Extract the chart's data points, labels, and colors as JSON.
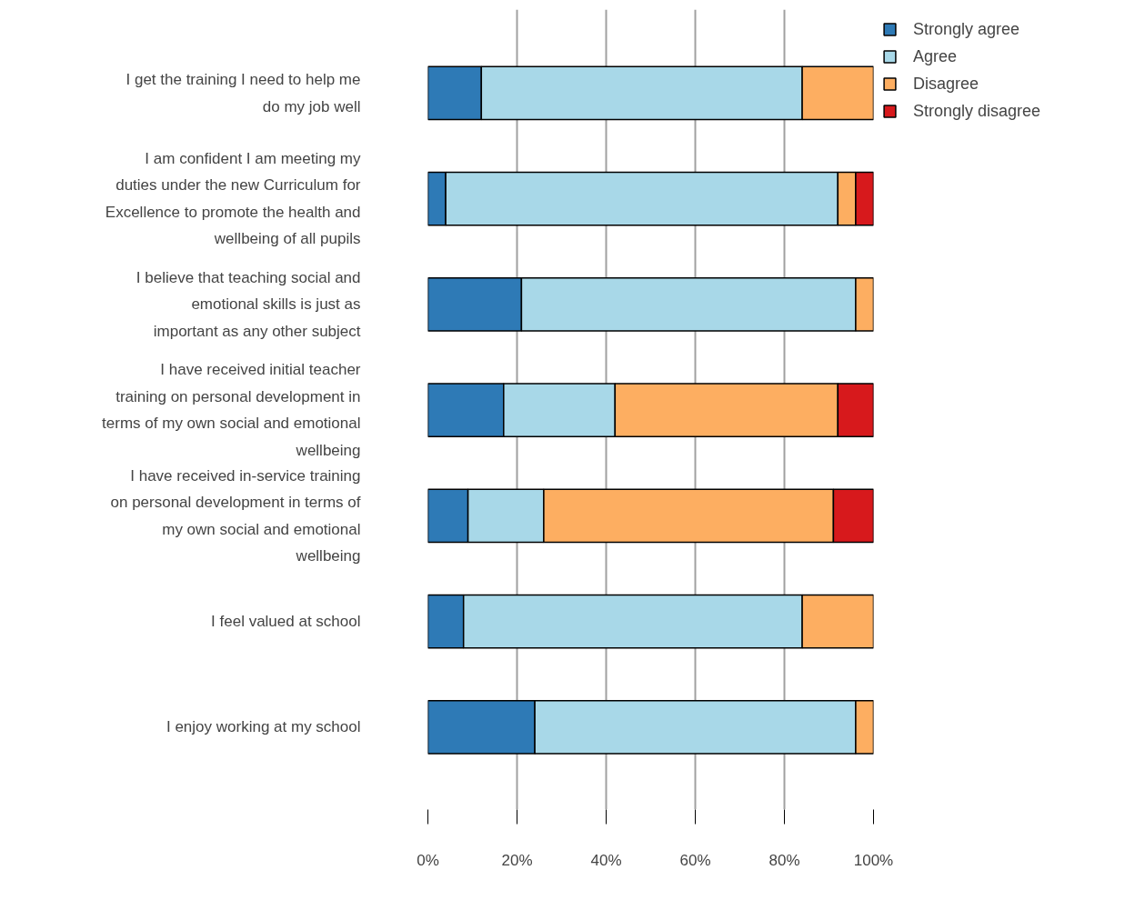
{
  "chart_data": {
    "type": "bar",
    "orientation": "horizontal",
    "stacked": true,
    "categories": [
      "I get the training I need to help me do my job well",
      "I am confident I am meeting my duties under the new Curriculum for Excellence to promote the health and wellbeing of all pupils",
      "I believe that teaching social and emotional skills is just as important as any other subject",
      "I have received initial teacher training on personal development in terms of my own social and emotional wellbeing",
      "I have received in-service training on personal development in terms of my own social and emotional wellbeing",
      "I feel valued at school",
      "I enjoy working at my school"
    ],
    "series": [
      {
        "name": "Strongly agree",
        "color": "#2e7ab6",
        "values": [
          12,
          4,
          21,
          17,
          9,
          8,
          24
        ]
      },
      {
        "name": "Agree",
        "color": "#a8d8e8",
        "values": [
          72,
          88,
          75,
          25,
          17,
          76,
          72
        ]
      },
      {
        "name": "Disagree",
        "color": "#fdae61",
        "values": [
          16,
          4,
          4,
          50,
          65,
          16,
          4
        ]
      },
      {
        "name": "Strongly disagree",
        "color": "#d7191c",
        "values": [
          null,
          4,
          null,
          8,
          9,
          null,
          null
        ]
      }
    ],
    "xlim": [
      0,
      100
    ],
    "xticks": [
      {
        "value": 0,
        "label": "0%"
      },
      {
        "value": 20,
        "label": "20%"
      },
      {
        "value": 40,
        "label": "40%"
      },
      {
        "value": 60,
        "label": "60%"
      },
      {
        "value": 80,
        "label": "80%"
      },
      {
        "value": 100,
        "label": "100%"
      }
    ],
    "grid": "x",
    "legend": "top right"
  }
}
